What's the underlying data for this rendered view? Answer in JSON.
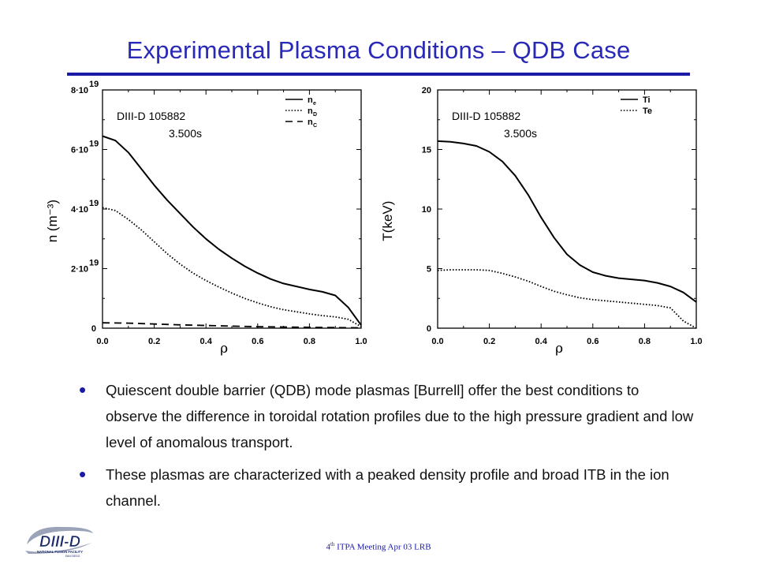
{
  "slide": {
    "title": "Experimental  Plasma Conditions – QDB  Case",
    "bullets": [
      "Quiescent double barrier (QDB) mode plasmas [Burrell] offer the best conditions to observe the difference in toroidal rotation profiles due to the high pressure gradient and low level of anomalous transport.",
      "These plasmas are characterized with a peaked density profile and broad ITB in the ion channel."
    ],
    "footer": {
      "sup": "th",
      "pre": "4",
      "text": " ITPA Meeting  Apr 03  LRB"
    },
    "logo": {
      "text": "DIII-D",
      "sub": "NATIONAL FUSION FACILITY",
      "sub2": "SAN DIEGO"
    }
  },
  "colors": {
    "title": "#2929b8",
    "rule": "#1a1aa6",
    "bullet": "#1a1aa6",
    "footer": "#1a1aa6"
  },
  "chart_data": [
    {
      "type": "line",
      "annotation": [
        "DIII-D  105882",
        "3.500s"
      ],
      "xlabel": "ρ",
      "ylabel": "n (m⁻³)",
      "xlim": [
        0,
        1.0
      ],
      "ylim": [
        0,
        8e+19
      ],
      "xticks": [
        0.0,
        0.2,
        0.4,
        0.6,
        0.8,
        1.0
      ],
      "xtick_labels": [
        "0.0",
        "0.2",
        "0.4",
        "0.6",
        "0.8",
        "1.0"
      ],
      "yticks": [
        0,
        2e+19,
        4e+19,
        6e+19,
        8e+19
      ],
      "ytick_labels": [
        {
          "mant": "0",
          "exp": ""
        },
        {
          "mant": "2·10",
          "exp": "19"
        },
        {
          "mant": "4·10",
          "exp": "19"
        },
        {
          "mant": "6·10",
          "exp": "19"
        },
        {
          "mant": "8·10",
          "exp": "19"
        }
      ],
      "legend_position": "top-right",
      "series": [
        {
          "name": "n",
          "sub": "e",
          "style": "solid",
          "x": [
            0.0,
            0.05,
            0.1,
            0.15,
            0.2,
            0.25,
            0.3,
            0.35,
            0.4,
            0.45,
            0.5,
            0.55,
            0.6,
            0.65,
            0.7,
            0.75,
            0.8,
            0.85,
            0.9,
            0.95,
            1.0
          ],
          "y": [
            6.45e+19,
            6.3e+19,
            5.9e+19,
            5.35e+19,
            4.8e+19,
            4.3e+19,
            3.85e+19,
            3.4e+19,
            3e+19,
            2.65e+19,
            2.35e+19,
            2.08e+19,
            1.85e+19,
            1.65e+19,
            1.5e+19,
            1.4e+19,
            1.3e+19,
            1.22e+19,
            1.1e+19,
            7e+18,
            1e+18
          ]
        },
        {
          "name": "n",
          "sub": "D",
          "style": "dotted",
          "x": [
            0.0,
            0.05,
            0.1,
            0.15,
            0.2,
            0.25,
            0.3,
            0.35,
            0.4,
            0.45,
            0.5,
            0.55,
            0.6,
            0.65,
            0.7,
            0.75,
            0.8,
            0.85,
            0.9,
            0.95,
            1.0
          ],
          "y": [
            4.05e+19,
            3.95e+19,
            3.65e+19,
            3.3e+19,
            2.9e+19,
            2.5e+19,
            2.15e+19,
            1.85e+19,
            1.6e+19,
            1.38e+19,
            1.18e+19,
            1e+19,
            8.5e+18,
            7.2e+18,
            6.2e+18,
            5.5e+18,
            4.8e+18,
            4.2e+18,
            3.8e+18,
            3e+18,
            5e+17
          ]
        },
        {
          "name": "n",
          "sub": "C",
          "style": "dashed",
          "x": [
            0.0,
            0.1,
            0.2,
            0.3,
            0.4,
            0.5,
            0.6,
            0.7,
            0.8,
            0.9,
            1.0
          ],
          "y": [
            1.8e+18,
            1.7e+18,
            1.4e+18,
            1.1e+18,
            9e+17,
            7e+17,
            5e+17,
            4e+17,
            3e+17,
            2e+17,
            1e+17
          ]
        }
      ]
    },
    {
      "type": "line",
      "annotation": [
        "DIII-D  105882",
        "3.500s"
      ],
      "xlabel": "ρ",
      "ylabel": "T(keV)",
      "xlim": [
        0,
        1.0
      ],
      "ylim": [
        0,
        20
      ],
      "xticks": [
        0.0,
        0.2,
        0.4,
        0.6,
        0.8,
        1.0
      ],
      "xtick_labels": [
        "0.0",
        "0.2",
        "0.4",
        "0.6",
        "0.8",
        "1.0"
      ],
      "yticks": [
        0,
        5,
        10,
        15,
        20
      ],
      "ytick_labels": [
        {
          "mant": "0",
          "exp": ""
        },
        {
          "mant": "5",
          "exp": ""
        },
        {
          "mant": "10",
          "exp": ""
        },
        {
          "mant": "15",
          "exp": ""
        },
        {
          "mant": "20",
          "exp": ""
        }
      ],
      "legend_position": "top-right",
      "series": [
        {
          "name": "Ti",
          "sub": "",
          "style": "solid",
          "x": [
            0.0,
            0.05,
            0.1,
            0.15,
            0.2,
            0.25,
            0.3,
            0.35,
            0.4,
            0.45,
            0.5,
            0.55,
            0.6,
            0.65,
            0.7,
            0.75,
            0.8,
            0.85,
            0.9,
            0.95,
            1.0
          ],
          "y": [
            15.7,
            15.65,
            15.5,
            15.3,
            14.8,
            14.0,
            12.8,
            11.2,
            9.3,
            7.6,
            6.2,
            5.3,
            4.7,
            4.4,
            4.2,
            4.1,
            4.0,
            3.8,
            3.5,
            3.0,
            2.2
          ]
        },
        {
          "name": "Te",
          "sub": "",
          "style": "dotted",
          "x": [
            0.0,
            0.05,
            0.1,
            0.15,
            0.2,
            0.25,
            0.3,
            0.35,
            0.4,
            0.45,
            0.5,
            0.55,
            0.6,
            0.65,
            0.7,
            0.75,
            0.8,
            0.85,
            0.9,
            0.95,
            1.0
          ],
          "y": [
            4.85,
            4.9,
            4.9,
            4.9,
            4.85,
            4.6,
            4.3,
            3.95,
            3.5,
            3.1,
            2.8,
            2.55,
            2.4,
            2.3,
            2.2,
            2.1,
            2.0,
            1.9,
            1.7,
            0.6,
            0.0
          ]
        }
      ]
    }
  ]
}
